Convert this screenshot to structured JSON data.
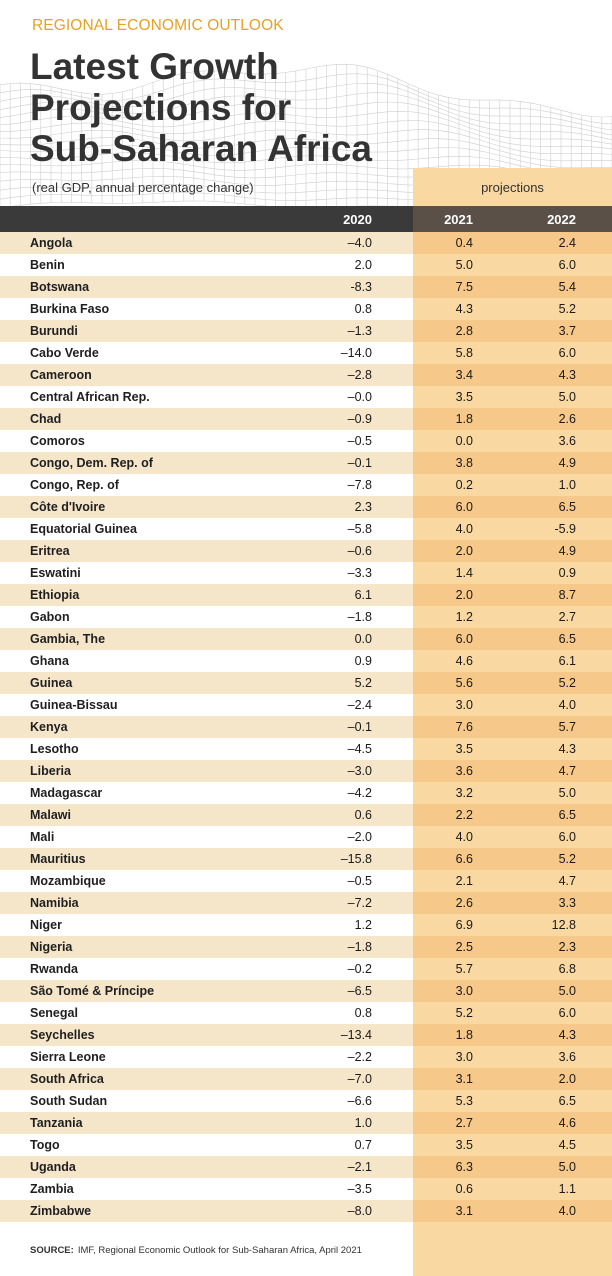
{
  "header": {
    "eyebrow": "REGIONAL ECONOMIC OUTLOOK",
    "title_lines": [
      "Latest Growth",
      "Projections for",
      "Sub-Saharan Africa"
    ],
    "subtitle": "(real GDP, annual percentage change)",
    "projections_label": "projections"
  },
  "colors": {
    "accent": "#e6a224",
    "header_bar": "#3a3a3a",
    "projection_header": "#5a5047",
    "row_band": "#f5e6ca",
    "projection_band_light": "#fad8a2",
    "projection_band_dark": "#f6c889"
  },
  "chart_data": {
    "type": "table",
    "title": "Latest Growth Projections for Sub-Saharan Africa",
    "subtitle": "(real GDP, annual percentage change)",
    "columns": [
      "2020",
      "2021",
      "2022"
    ],
    "projection_columns": [
      "2021",
      "2022"
    ],
    "rows": [
      {
        "country": "Angola",
        "values": [
          "–4.0",
          "0.4",
          "2.4"
        ]
      },
      {
        "country": "Benin",
        "values": [
          "2.0",
          "5.0",
          "6.0"
        ]
      },
      {
        "country": "Botswana",
        "values": [
          "-8.3",
          "7.5",
          "5.4"
        ]
      },
      {
        "country": "Burkina Faso",
        "values": [
          "0.8",
          "4.3",
          "5.2"
        ]
      },
      {
        "country": "Burundi",
        "values": [
          "–1.3",
          "2.8",
          "3.7"
        ]
      },
      {
        "country": "Cabo Verde",
        "values": [
          "–14.0",
          "5.8",
          "6.0"
        ]
      },
      {
        "country": "Cameroon",
        "values": [
          "–2.8",
          "3.4",
          "4.3"
        ]
      },
      {
        "country": "Central African Rep.",
        "values": [
          "–0.0",
          "3.5",
          "5.0"
        ]
      },
      {
        "country": "Chad",
        "values": [
          "–0.9",
          "1.8",
          "2.6"
        ]
      },
      {
        "country": "Comoros",
        "values": [
          "–0.5",
          "0.0",
          "3.6"
        ]
      },
      {
        "country": "Congo, Dem. Rep. of",
        "values": [
          "–0.1",
          "3.8",
          "4.9"
        ]
      },
      {
        "country": "Congo, Rep. of",
        "values": [
          "–7.8",
          "0.2",
          "1.0"
        ]
      },
      {
        "country": "Côte d'Ivoire",
        "values": [
          "2.3",
          "6.0",
          "6.5"
        ]
      },
      {
        "country": "Equatorial Guinea",
        "values": [
          "–5.8",
          "4.0",
          "-5.9"
        ]
      },
      {
        "country": "Eritrea",
        "values": [
          "–0.6",
          "2.0",
          "4.9"
        ]
      },
      {
        "country": "Eswatini",
        "values": [
          "–3.3",
          "1.4",
          "0.9"
        ]
      },
      {
        "country": "Ethiopia",
        "values": [
          "6.1",
          "2.0",
          "8.7"
        ]
      },
      {
        "country": "Gabon",
        "values": [
          "–1.8",
          "1.2",
          "2.7"
        ]
      },
      {
        "country": "Gambia, The",
        "values": [
          "0.0",
          "6.0",
          "6.5"
        ]
      },
      {
        "country": "Ghana",
        "values": [
          "0.9",
          "4.6",
          "6.1"
        ]
      },
      {
        "country": "Guinea",
        "values": [
          "5.2",
          "5.6",
          "5.2"
        ]
      },
      {
        "country": "Guinea-Bissau",
        "values": [
          "–2.4",
          "3.0",
          "4.0"
        ]
      },
      {
        "country": "Kenya",
        "values": [
          "–0.1",
          "7.6",
          "5.7"
        ]
      },
      {
        "country": "Lesotho",
        "values": [
          "–4.5",
          "3.5",
          "4.3"
        ]
      },
      {
        "country": "Liberia",
        "values": [
          "–3.0",
          "3.6",
          "4.7"
        ]
      },
      {
        "country": "Madagascar",
        "values": [
          "–4.2",
          "3.2",
          "5.0"
        ]
      },
      {
        "country": "Malawi",
        "values": [
          "0.6",
          "2.2",
          "6.5"
        ]
      },
      {
        "country": "Mali",
        "values": [
          "–2.0",
          "4.0",
          "6.0"
        ]
      },
      {
        "country": "Mauritius",
        "values": [
          "–15.8",
          "6.6",
          "5.2"
        ]
      },
      {
        "country": "Mozambique",
        "values": [
          "–0.5",
          "2.1",
          "4.7"
        ]
      },
      {
        "country": "Namibia",
        "values": [
          "–7.2",
          "2.6",
          "3.3"
        ]
      },
      {
        "country": "Niger",
        "values": [
          "1.2",
          "6.9",
          "12.8"
        ]
      },
      {
        "country": "Nigeria",
        "values": [
          "–1.8",
          "2.5",
          "2.3"
        ]
      },
      {
        "country": "Rwanda",
        "values": [
          "–0.2",
          "5.7",
          "6.8"
        ]
      },
      {
        "country": "São Tomé & Príncipe",
        "values": [
          "–6.5",
          "3.0",
          "5.0"
        ]
      },
      {
        "country": "Senegal",
        "values": [
          "0.8",
          "5.2",
          "6.0"
        ]
      },
      {
        "country": "Seychelles",
        "values": [
          "–13.4",
          "1.8",
          "4.3"
        ]
      },
      {
        "country": "Sierra Leone",
        "values": [
          "–2.2",
          "3.0",
          "3.6"
        ]
      },
      {
        "country": "South Africa",
        "values": [
          "–7.0",
          "3.1",
          "2.0"
        ]
      },
      {
        "country": "South Sudan",
        "values": [
          "–6.6",
          "5.3",
          "6.5"
        ]
      },
      {
        "country": "Tanzania",
        "values": [
          "1.0",
          "2.7",
          "4.6"
        ]
      },
      {
        "country": "Togo",
        "values": [
          "0.7",
          "3.5",
          "4.5"
        ]
      },
      {
        "country": "Uganda",
        "values": [
          "–2.1",
          "6.3",
          "5.0"
        ]
      },
      {
        "country": "Zambia",
        "values": [
          "–3.5",
          "0.6",
          "1.1"
        ]
      },
      {
        "country": "Zimbabwe",
        "values": [
          "–8.0",
          "3.1",
          "4.0"
        ]
      }
    ]
  },
  "source": {
    "label": "SOURCE:",
    "text": "IMF, Regional Economic Outlook for Sub-Saharan Africa, April 2021"
  }
}
